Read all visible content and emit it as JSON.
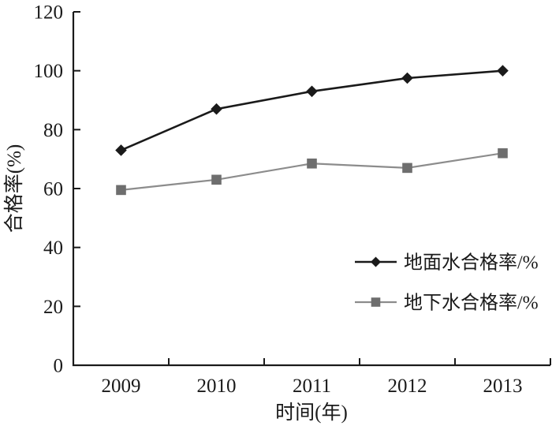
{
  "chart_data": {
    "type": "line",
    "title": "",
    "xlabel": "时间(年)",
    "ylabel": "合格率(%)",
    "categories": [
      "2009",
      "2010",
      "2011",
      "2012",
      "2013"
    ],
    "y_ticks": [
      0,
      20,
      40,
      60,
      80,
      100,
      120
    ],
    "ylim": [
      0,
      120
    ],
    "grid": false,
    "legend_position": "inside-right",
    "background": "#ffffff",
    "axis_color": "#1a1a1a",
    "series": [
      {
        "name": "地面水合格率/%",
        "marker": "diamond",
        "line_color": "#1a1a1a",
        "marker_color": "#1a1a1a",
        "values": [
          73,
          87,
          93,
          97.5,
          100
        ]
      },
      {
        "name": "地下水合格率/%",
        "marker": "square",
        "line_color": "#8c8c8c",
        "marker_color": "#6e6e6e",
        "values": [
          59.5,
          63,
          68.5,
          67,
          72
        ]
      }
    ]
  }
}
